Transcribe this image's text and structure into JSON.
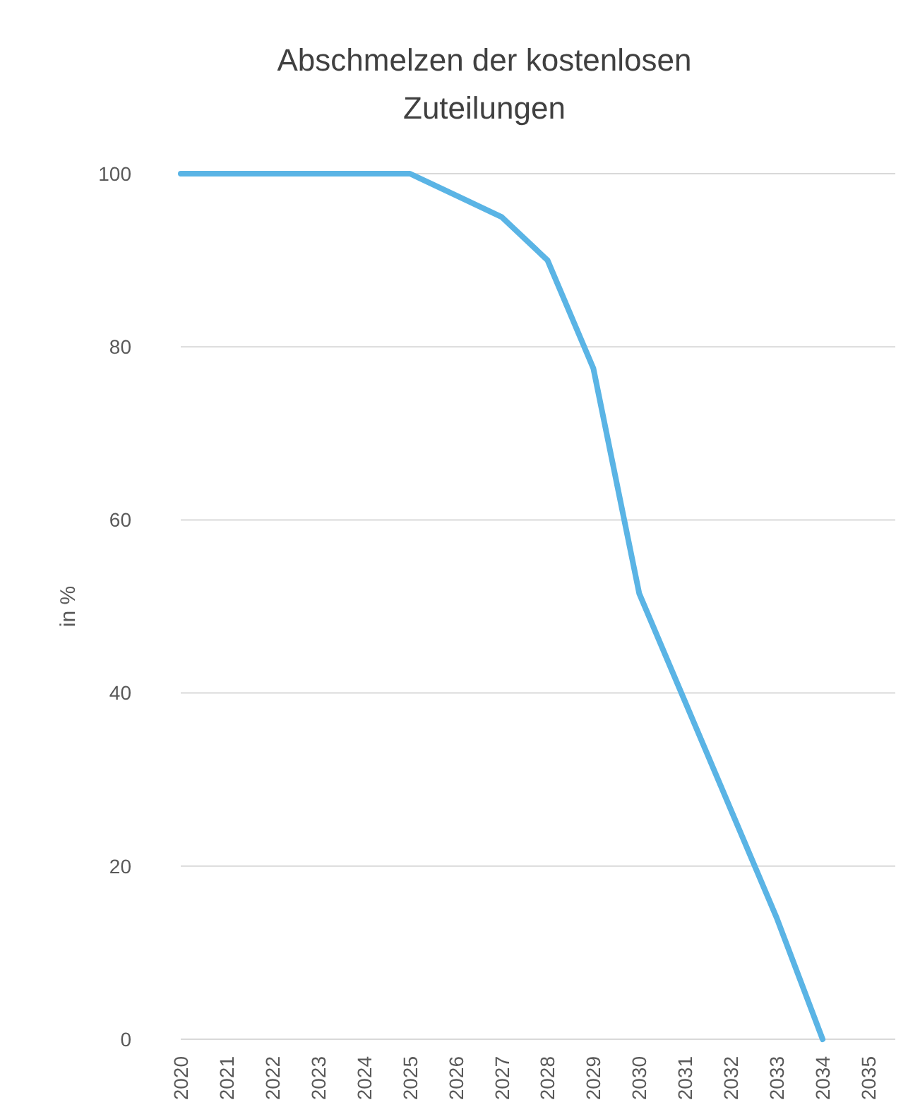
{
  "chart_data": {
    "type": "line",
    "title": "Abschmelzen der kostenlosen Zuteilungen",
    "ylabel": "in %",
    "categories": [
      "2020",
      "2021",
      "2022",
      "2023",
      "2024",
      "2025",
      "2026",
      "2027",
      "2028",
      "2029",
      "2030",
      "2031",
      "2032",
      "2033",
      "2034",
      "2035"
    ],
    "series": [
      {
        "color": "#5ab4e5",
        "values": [
          100,
          100,
          100,
          100,
          100,
          100,
          97.5,
          95,
          90,
          77.5,
          51.5,
          39,
          26.5,
          14,
          0,
          null
        ]
      }
    ],
    "ylim": [
      0,
      100
    ],
    "yticks": [
      0,
      20,
      40,
      60,
      80,
      100
    ],
    "grid": "y",
    "marker": "none",
    "line_style": "solid"
  }
}
